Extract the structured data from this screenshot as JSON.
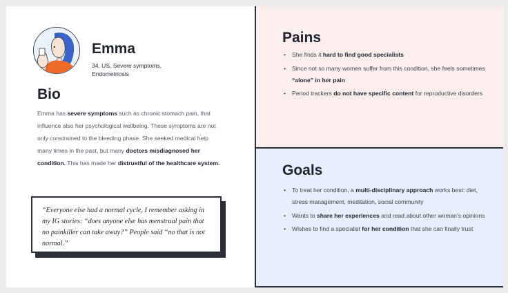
{
  "persona": {
    "name": "Emma",
    "meta": "34, US, Severe symptoms, Endometriosis"
  },
  "bio": {
    "title": "Bio",
    "p1": "Emma has ",
    "s1": "severe symptoms",
    "p2": " such as chronic stomach pain, that influence also her psychological wellbeing. These symptoms are not only constrained to the bleeding phase. She seeked medical help many times in the past, but many ",
    "s2": "doctors misdiagnosed her condition.",
    "p3": " This has made her ",
    "s3": "distrustful of the healthcare system."
  },
  "quote": "“Everyone else had a normal cycle, I remember asking in my IG stories: “does anyone else has menstrual pain that no painkiller can take away?” People said “no that is not normal.”",
  "pains": {
    "title": "Pains",
    "items": [
      {
        "a": "She finds it ",
        "b": "hard to find good specialists",
        "c": ""
      },
      {
        "a": "Since not so many women suffer from this condition, she feels sometimes ",
        "b": "“alone” in her pain",
        "c": ""
      },
      {
        "a": "Period trackers ",
        "b": "do not have specific content",
        "c": " for reproductive disorders"
      }
    ]
  },
  "goals": {
    "title": "Goals",
    "items": [
      {
        "a": "To treat her condition, a ",
        "b": "multi-disciplinary approach",
        "c": " works best: diet, stress management, meditation, social community"
      },
      {
        "a": "Wants to ",
        "b": "share her experiences",
        "c": " and read about other woman’s opinions"
      },
      {
        "a": "Wishes to find a specialist ",
        "b": "for her condition",
        "c": " that she can finally trust"
      }
    ]
  },
  "colors": {
    "pains_bg": "#fbeeed",
    "goals_bg": "#e6effb",
    "avatar_hair": "#3b64c8",
    "avatar_shirt": "#f06a2a"
  }
}
